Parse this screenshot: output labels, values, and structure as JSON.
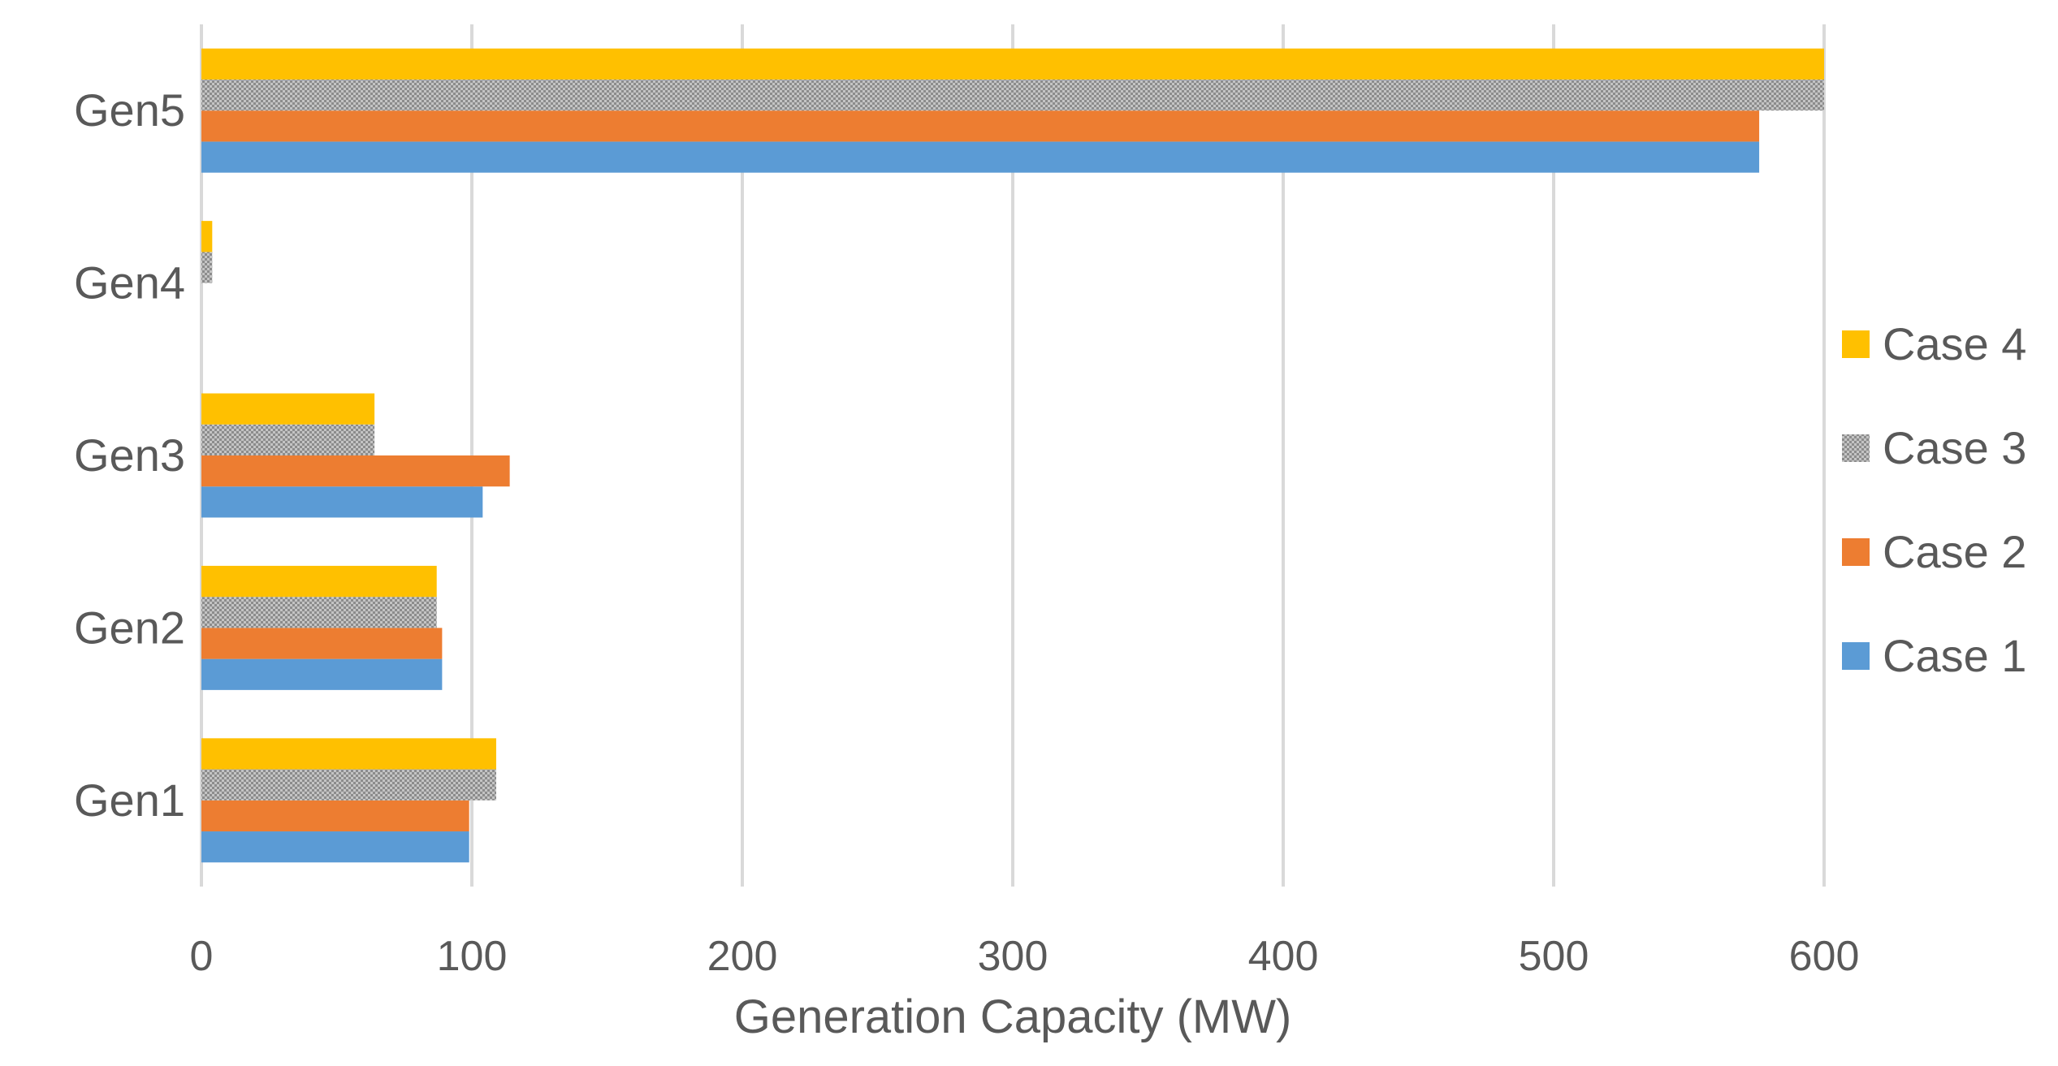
{
  "chart_data": {
    "type": "bar",
    "orientation": "horizontal",
    "title": "",
    "xlabel": "Generation Capacity (MW)",
    "ylabel": "",
    "xlim": [
      0,
      600
    ],
    "xticks": [
      0,
      100,
      200,
      300,
      400,
      500,
      600
    ],
    "grid": true,
    "legend_position": "right",
    "categories": [
      "Gen1",
      "Gen2",
      "Gen3",
      "Gen4",
      "Gen5"
    ],
    "series": [
      {
        "name": "Case 1",
        "color": "#5b9bd5",
        "pattern": "solid",
        "values": [
          99,
          89,
          104,
          0,
          576
        ]
      },
      {
        "name": "Case 2",
        "color": "#ed7d31",
        "pattern": "solid",
        "values": [
          99,
          89,
          114,
          0,
          576
        ]
      },
      {
        "name": "Case 3",
        "color": "#a5a5a5",
        "pattern": "dotted",
        "values": [
          109,
          87,
          64,
          4,
          600
        ]
      },
      {
        "name": "Case 4",
        "color": "#ffc000",
        "pattern": "solid",
        "values": [
          109,
          87,
          64,
          4,
          600
        ]
      }
    ]
  }
}
